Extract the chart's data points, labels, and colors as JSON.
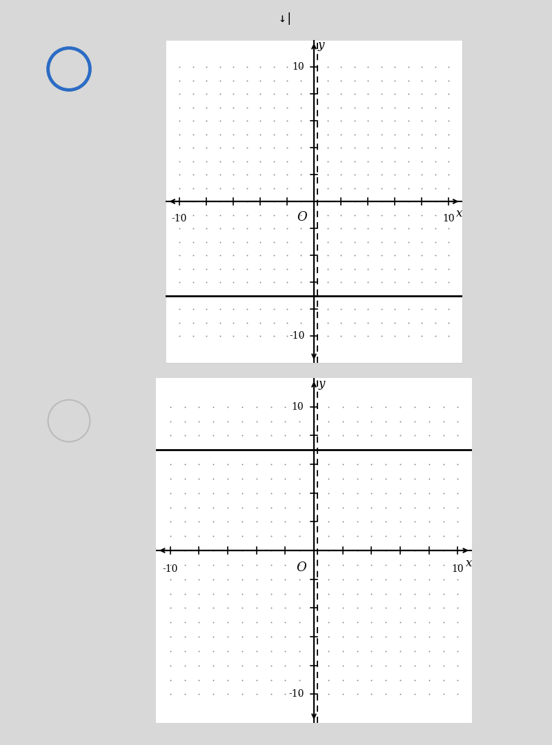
{
  "panels": [
    {
      "selected": true,
      "circle_color": "#2b6cc4",
      "circle_linewidth": 3.5,
      "h_line_y": -7,
      "v_asymptote_x": 0,
      "xlim": [
        -11,
        11
      ],
      "ylim": [
        -12,
        12
      ]
    },
    {
      "selected": false,
      "circle_color": "#bbbbbb",
      "circle_linewidth": 1.5,
      "h_line_y": 7,
      "v_asymptote_x": 0,
      "xlim": [
        -11,
        11
      ],
      "ylim": [
        -12,
        12
      ]
    }
  ],
  "bg_color": "#d8d8d8",
  "panel_bg": "#ffffff",
  "panel_border": "#cccccc",
  "dot_color": "#888888",
  "axis_color": "#000000",
  "tick_positions": [
    -10,
    -8,
    -6,
    -4,
    -2,
    2,
    4,
    6,
    8,
    10
  ],
  "top_label": "↓|"
}
